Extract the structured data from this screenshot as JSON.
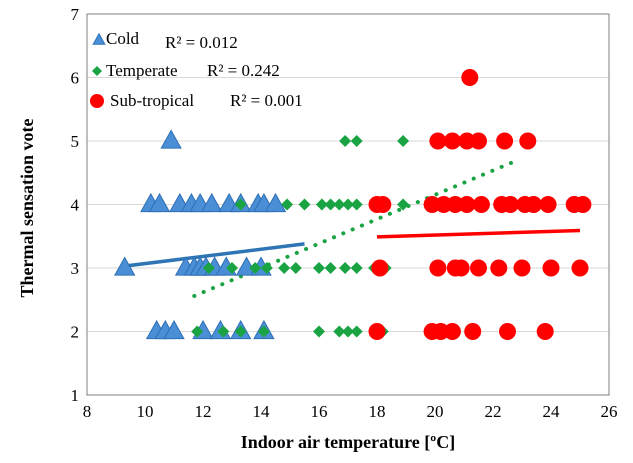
{
  "chart_data": {
    "type": "scatter",
    "xlabel": "Indoor air temperature [ºC]",
    "ylabel": "Thermal sensation vote",
    "xlim": [
      8,
      26
    ],
    "ylim": [
      1,
      7
    ],
    "xticks": [
      8,
      10,
      12,
      14,
      16,
      18,
      20,
      22,
      24,
      26
    ],
    "yticks": [
      1,
      2,
      3,
      4,
      5,
      6,
      7
    ],
    "grid": "horizontal",
    "legend_position": "top-left",
    "series": [
      {
        "name": "Cold",
        "r2_label": "R² = 0.012",
        "marker": "triangle",
        "color": "#4a8fd6",
        "stroke": "#2e6fb4",
        "points": [
          [
            9.3,
            3
          ],
          [
            10.4,
            2
          ],
          [
            10.7,
            2
          ],
          [
            11.0,
            2
          ],
          [
            12.0,
            2
          ],
          [
            12.6,
            2
          ],
          [
            13.3,
            2
          ],
          [
            14.1,
            2
          ],
          [
            11.4,
            3
          ],
          [
            11.7,
            3
          ],
          [
            11.9,
            3
          ],
          [
            12.1,
            3
          ],
          [
            12.4,
            3
          ],
          [
            12.8,
            3
          ],
          [
            13.5,
            3
          ],
          [
            14.0,
            3
          ],
          [
            10.2,
            4
          ],
          [
            10.5,
            4
          ],
          [
            11.2,
            4
          ],
          [
            11.6,
            4
          ],
          [
            11.9,
            4
          ],
          [
            12.3,
            4
          ],
          [
            12.9,
            4
          ],
          [
            13.3,
            4
          ],
          [
            13.9,
            4
          ],
          [
            14.1,
            4
          ],
          [
            14.5,
            4
          ],
          [
            10.9,
            5
          ]
        ],
        "trend": {
          "x": [
            9.3,
            15.5
          ],
          "y": [
            3.03,
            3.38
          ],
          "color": "#2e75b6",
          "style": "solid"
        }
      },
      {
        "name": "Temperate",
        "r2_label": "R² = 0.242",
        "marker": "diamond",
        "color": "#1aa342",
        "points": [
          [
            11.8,
            2
          ],
          [
            12.7,
            2
          ],
          [
            13.3,
            2
          ],
          [
            14.1,
            2
          ],
          [
            16.0,
            2
          ],
          [
            16.7,
            2
          ],
          [
            17.0,
            2
          ],
          [
            17.3,
            2
          ],
          [
            18.2,
            2
          ],
          [
            12.2,
            3
          ],
          [
            13.0,
            3
          ],
          [
            13.8,
            3
          ],
          [
            14.2,
            3
          ],
          [
            14.8,
            3
          ],
          [
            15.2,
            3
          ],
          [
            16.0,
            3
          ],
          [
            16.4,
            3
          ],
          [
            16.9,
            3
          ],
          [
            17.3,
            3
          ],
          [
            17.9,
            3
          ],
          [
            18.3,
            3
          ],
          [
            13.3,
            4
          ],
          [
            14.9,
            4
          ],
          [
            15.5,
            4
          ],
          [
            16.1,
            4
          ],
          [
            16.4,
            4
          ],
          [
            16.7,
            4
          ],
          [
            17.0,
            4
          ],
          [
            17.3,
            4
          ],
          [
            18.0,
            4
          ],
          [
            18.9,
            4
          ],
          [
            20.0,
            4
          ],
          [
            16.9,
            5
          ],
          [
            17.3,
            5
          ],
          [
            18.9,
            5
          ]
        ],
        "trend": {
          "x": [
            11.7,
            22.7
          ],
          "y": [
            2.56,
            4.67
          ],
          "color": "#1aa342",
          "style": "dotted"
        }
      },
      {
        "name": "Sub-tropical",
        "r2_label": "R² = 0.001",
        "marker": "circle",
        "color": "#ff0000",
        "points": [
          [
            18.0,
            2
          ],
          [
            19.9,
            2
          ],
          [
            20.2,
            2
          ],
          [
            20.6,
            2
          ],
          [
            21.3,
            2
          ],
          [
            22.5,
            2
          ],
          [
            23.8,
            2
          ],
          [
            18.1,
            3
          ],
          [
            20.1,
            3
          ],
          [
            20.7,
            3
          ],
          [
            20.9,
            3
          ],
          [
            21.5,
            3
          ],
          [
            22.2,
            3
          ],
          [
            23.0,
            3
          ],
          [
            24.0,
            3
          ],
          [
            25.0,
            3
          ],
          [
            18.0,
            4
          ],
          [
            18.2,
            4
          ],
          [
            19.9,
            4
          ],
          [
            20.3,
            4
          ],
          [
            20.7,
            4
          ],
          [
            21.1,
            4
          ],
          [
            21.6,
            4
          ],
          [
            22.3,
            4
          ],
          [
            22.6,
            4
          ],
          [
            23.1,
            4
          ],
          [
            23.4,
            4
          ],
          [
            23.9,
            4
          ],
          [
            24.8,
            4
          ],
          [
            25.1,
            4
          ],
          [
            20.1,
            5
          ],
          [
            20.6,
            5
          ],
          [
            21.1,
            5
          ],
          [
            21.5,
            5
          ],
          [
            22.4,
            5
          ],
          [
            23.2,
            5
          ],
          [
            21.2,
            6
          ]
        ],
        "trend": {
          "x": [
            18.0,
            25.0
          ],
          "y": [
            3.49,
            3.59
          ],
          "color": "#ff0000",
          "style": "solid"
        }
      }
    ]
  }
}
